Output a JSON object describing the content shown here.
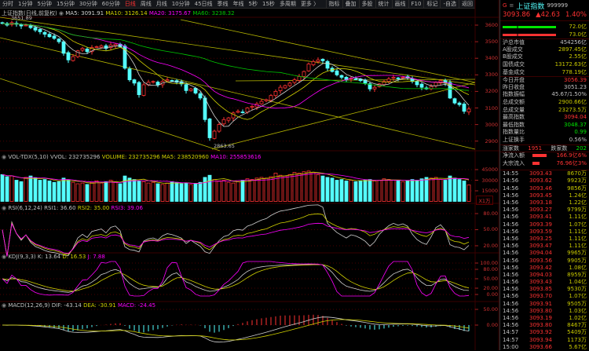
{
  "toolbar": {
    "items": [
      "分时",
      "1分钟",
      "5分钟",
      "15分钟",
      "30分钟",
      "60分钟",
      "日线",
      "周线",
      "月线",
      "10分钟",
      "45日线",
      "季线",
      "年线",
      "5秒",
      "15秒",
      "多周期",
      "更多 〉"
    ],
    "active": "日线",
    "right_items": [
      "指标",
      "叠加",
      "多股",
      "统计",
      "画线",
      "F10",
      "标记",
      "-自选",
      "返回"
    ]
  },
  "main": {
    "title": "上证指数(日线,前复权)",
    "ma5": "MA5: 3091.91",
    "ma10": "MA10: 3126.14",
    "ma20": "MA20: 3175.67",
    "ma60": "MA60: 3238.32",
    "high_label": "3651.89",
    "low_label": "2863.65"
  },
  "volume": {
    "title": "VOL-TDX(5,10)",
    "vvol": "VVOL: 232735296",
    "volume": "VOLUME: 232735296",
    "ma5": "MA5: 238520960",
    "ma10": "MA10: 255853616",
    "unit": "X1万"
  },
  "rsi": {
    "title": "RSI(6,12,24)",
    "rsi1": "RSI1: 36.60",
    "rsi2": "RSI2: 35.00",
    "rsi3": "RSI3: 39.06"
  },
  "kdj": {
    "title": "KDJ(9,3,3)",
    "k": "K: 13.64",
    "d": "D: 16.53",
    "j": "J: 7.88"
  },
  "macd": {
    "title": "MACD(12,26,9)",
    "dif": "DIF: -43.14",
    "dea": "DEA: -30.91",
    "macd": "MACD: -24.45"
  },
  "axes": {
    "price": [
      "3600",
      "3500",
      "3400",
      "3300",
      "3200",
      "3100",
      "3000",
      "2900"
    ],
    "volume": [
      "45000",
      "30000",
      "15000"
    ],
    "rsi": [
      "80.00",
      "50.00",
      "20.00"
    ],
    "kdj": [
      "100.00",
      "80.00",
      "50.00",
      "20.00",
      "0.00"
    ],
    "macd": [
      "50.00",
      "0.00"
    ]
  },
  "colors": {
    "up": "#ff3232",
    "down": "#54ffff",
    "ma5": "#d0d0d0",
    "ma10": "#d2d200",
    "ma20": "#ff00ff",
    "ma60": "#00c800",
    "trend": "#b4b400"
  },
  "chart_data": {
    "type": "candlestick",
    "ylim": [
      2850,
      3650
    ],
    "close": [
      3610,
      3600,
      3615,
      3605,
      3595,
      3600,
      3585,
      3570,
      3560,
      3545,
      3530,
      3520,
      3500,
      3430,
      3390,
      3410,
      3445,
      3460,
      3440,
      3465,
      3470,
      3475,
      3460,
      3480,
      3485,
      3470,
      3340,
      3270,
      3250,
      3180,
      3240,
      3255,
      3260,
      3240,
      3260,
      3270,
      3265,
      3255,
      3245,
      3205,
      3215,
      3190,
      3160,
      3030,
      2920,
      2960,
      3000,
      3030,
      3040,
      3070,
      3080,
      3075,
      3100,
      3110,
      3125,
      3140,
      3150,
      3175,
      3200,
      3225,
      3235,
      3250,
      3270,
      3290,
      3320,
      3365,
      3380,
      3390,
      3385,
      3340,
      3320,
      3300,
      3285,
      3270,
      3280,
      3275,
      3265,
      3250,
      3215,
      3225,
      3245,
      3260,
      3275,
      3285,
      3280,
      3285,
      3280,
      3260,
      3240,
      3225,
      3215,
      3230,
      3255,
      3265,
      3250,
      3160,
      3130,
      3120,
      3080,
      3093.86
    ],
    "volume_wan": [
      38000,
      35000,
      36000,
      30000,
      28000,
      34000,
      36000,
      33000,
      30000,
      31000,
      29000,
      27000,
      28000,
      33000,
      30000,
      27000,
      25000,
      26000,
      24000,
      27000,
      29000,
      26000,
      28000,
      30000,
      27000,
      25000,
      36000,
      33000,
      31000,
      29000,
      28000,
      26000,
      27000,
      25000,
      24000,
      26000,
      28000,
      27000,
      25000,
      26000,
      24000,
      25000,
      27000,
      34000,
      37000,
      31000,
      29000,
      30000,
      27000,
      26000,
      28000,
      30000,
      32000,
      31000,
      33000,
      34000,
      33000,
      35000,
      40000,
      37000,
      36000,
      38000,
      41000,
      40000,
      42000,
      43000,
      41000,
      38000,
      36000,
      34000,
      33000,
      30000,
      31000,
      29000,
      30000,
      28000,
      29000,
      30000,
      31000,
      29000,
      30000,
      32000,
      31000,
      30000,
      29000,
      28000,
      29000,
      31000,
      30000,
      32000,
      34000,
      33000,
      34000,
      31000,
      30000,
      36000,
      33000,
      31000,
      29000,
      23273
    ]
  },
  "quote": {
    "market_flag": "G",
    "menu_icon": "≡",
    "name": "上证指数",
    "code": "999999",
    "price": "3093.86",
    "change": "▲42.63",
    "pct": "1.40%",
    "bar1": "72.0亿",
    "bar2": "73.0亿",
    "stats": [
      {
        "label": "沪总市值",
        "value": "454256亿",
        "color": "#c0c0c0",
        "sep": true
      },
      {
        "label": "A股成交",
        "value": "2897.45亿",
        "color": "#c8c800"
      },
      {
        "label": "B股成交",
        "value": "2.55亿",
        "color": "#c8c800"
      },
      {
        "label": "国债成交",
        "value": "13172.63亿",
        "color": "#c8c800"
      },
      {
        "label": "基金成交",
        "value": "778.19亿",
        "color": "#c8c800"
      },
      {
        "label": "今日开盘",
        "value": "3056.39",
        "color": "#ff3232",
        "sep": true
      },
      {
        "label": "昨日收盘",
        "value": "3051.23",
        "color": "#c0c0c0"
      },
      {
        "label": "指数振幅",
        "value": "45.67/1.50%",
        "color": "#c0c0c0"
      },
      {
        "label": "总成交额",
        "value": "2900.66亿",
        "color": "#c8c800"
      },
      {
        "label": "总成交量",
        "value": "23273.5万",
        "color": "#c8c800"
      },
      {
        "label": "最高指数",
        "value": "3094.04",
        "color": "#ff3232"
      },
      {
        "label": "最低指数",
        "value": "3048.37",
        "color": "#00e600"
      },
      {
        "label": "指数量比",
        "value": "0.99",
        "color": "#00e600"
      },
      {
        "label": "上证换手",
        "value": "0.56%",
        "color": "#c0c0c0"
      }
    ],
    "adv_label": "涨家数",
    "adv": "1951",
    "dec_label": "跌家数",
    "dec": "202",
    "flows": [
      {
        "label": "净流入额",
        "value": "166.9亿",
        "pct": "6%",
        "bar": 0.6
      },
      {
        "label": "大宗流入",
        "value": "76.96亿",
        "pct": "3%",
        "bar": 0.3
      }
    ],
    "ticks": [
      [
        "14:55",
        "3093.43",
        "8670万"
      ],
      [
        "14:56",
        "3093.62",
        "9923万"
      ],
      [
        "14:56",
        "3093.46",
        "9856万"
      ],
      [
        "14:56",
        "3093.45",
        "1.24亿"
      ],
      [
        "14:56",
        "3093.18",
        "1.22亿"
      ],
      [
        "14:56",
        "3093.27",
        "9799万"
      ],
      [
        "14:56",
        "3093.41",
        "1.11亿"
      ],
      [
        "14:56",
        "3093.39",
        "1.07亿"
      ],
      [
        "14:56",
        "3093.59",
        "1.11亿"
      ],
      [
        "14:56",
        "3093.25",
        "1.11亿"
      ],
      [
        "14:56",
        "3093.47",
        "1.11亿"
      ],
      [
        "14:56",
        "3094.04",
        "9965万"
      ],
      [
        "14:56",
        "3093.56",
        "9905万"
      ],
      [
        "14:56",
        "3093.42",
        "1.08亿"
      ],
      [
        "14:56",
        "3094.03",
        "8959万"
      ],
      [
        "14:56",
        "3093.43",
        "1.04亿"
      ],
      [
        "14:56",
        "3093.85",
        "9530万"
      ],
      [
        "14:56",
        "3093.70",
        "1.07亿"
      ],
      [
        "14:56",
        "3093.91",
        "9505万"
      ],
      [
        "14:56",
        "3093.80",
        "1.03亿"
      ],
      [
        "14:56",
        "3093.19",
        "1.02亿"
      ],
      [
        "14:56",
        "3093.80",
        "8467万"
      ],
      [
        "14:57",
        "3093.92",
        "5409万"
      ],
      [
        "14:57",
        "3093.94",
        "1173万"
      ],
      [
        "15:00",
        "3093.66",
        "5.67亿"
      ]
    ]
  }
}
